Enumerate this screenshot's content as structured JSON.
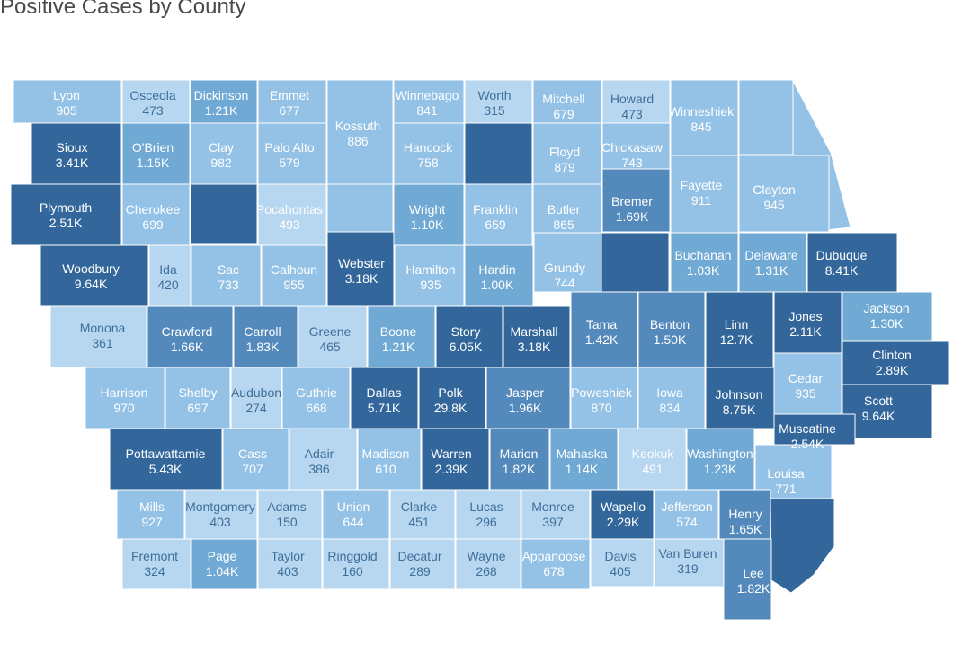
{
  "title": "Positive Cases by County",
  "palette": {
    "c1": "#b7d6ef",
    "c2": "#94c2e6",
    "c3": "#6fa9d4",
    "c4": "#5389bb",
    "c5": "#33679b"
  },
  "counties": [
    {
      "name": "Lyon",
      "value": "905",
      "cases": 905
    },
    {
      "name": "Osceola",
      "value": "473",
      "cases": 473
    },
    {
      "name": "Dickinson",
      "value": "1.21K",
      "cases": 1210
    },
    {
      "name": "Emmet",
      "value": "677",
      "cases": 677
    },
    {
      "name": "Kossuth",
      "value": "886",
      "cases": 886
    },
    {
      "name": "Winnebago",
      "value": "841",
      "cases": 841
    },
    {
      "name": "Worth",
      "value": "315",
      "cases": 315
    },
    {
      "name": "Mitchell",
      "value": "679",
      "cases": 679
    },
    {
      "name": "Howard",
      "value": "473",
      "cases": 473
    },
    {
      "name": "Winneshiek",
      "value": "845",
      "cases": 845
    },
    {
      "name": "Sioux",
      "value": "3.41K",
      "cases": 3410
    },
    {
      "name": "O'Brien",
      "value": "1.15K",
      "cases": 1150
    },
    {
      "name": "Clay",
      "value": "982",
      "cases": 982
    },
    {
      "name": "Palo Alto",
      "value": "579",
      "cases": 579
    },
    {
      "name": "Hancock",
      "value": "758",
      "cases": 758
    },
    {
      "name": "Floyd",
      "value": "879",
      "cases": 879
    },
    {
      "name": "Chickasaw",
      "value": "743",
      "cases": 743
    },
    {
      "name": "Fayette",
      "value": "911",
      "cases": 911
    },
    {
      "name": "Clayton",
      "value": "945",
      "cases": 945
    },
    {
      "name": "Plymouth",
      "value": "2.51K",
      "cases": 2510
    },
    {
      "name": "Cherokee",
      "value": "699",
      "cases": 699
    },
    {
      "name": "Pocahontas",
      "value": "493",
      "cases": 493
    },
    {
      "name": "Wright",
      "value": "1.10K",
      "cases": 1100
    },
    {
      "name": "Franklin",
      "value": "659",
      "cases": 659
    },
    {
      "name": "Butler",
      "value": "865",
      "cases": 865
    },
    {
      "name": "Bremer",
      "value": "1.69K",
      "cases": 1690
    },
    {
      "name": "Buchanan",
      "value": "1.03K",
      "cases": 1030
    },
    {
      "name": "Delaware",
      "value": "1.31K",
      "cases": 1310
    },
    {
      "name": "Dubuque",
      "value": "8.41K",
      "cases": 8410
    },
    {
      "name": "Woodbury",
      "value": "9.64K",
      "cases": 9640
    },
    {
      "name": "Ida",
      "value": "420",
      "cases": 420
    },
    {
      "name": "Sac",
      "value": "733",
      "cases": 733
    },
    {
      "name": "Calhoun",
      "value": "955",
      "cases": 955
    },
    {
      "name": "Webster",
      "value": "3.18K",
      "cases": 3180
    },
    {
      "name": "Hamilton",
      "value": "935",
      "cases": 935
    },
    {
      "name": "Hardin",
      "value": "1.00K",
      "cases": 1000
    },
    {
      "name": "Grundy",
      "value": "744",
      "cases": 744
    },
    {
      "name": "Monona",
      "value": "361",
      "cases": 361
    },
    {
      "name": "Crawford",
      "value": "1.66K",
      "cases": 1660
    },
    {
      "name": "Carroll",
      "value": "1.83K",
      "cases": 1830
    },
    {
      "name": "Greene",
      "value": "465",
      "cases": 465
    },
    {
      "name": "Boone",
      "value": "1.21K",
      "cases": 1210
    },
    {
      "name": "Story",
      "value": "6.05K",
      "cases": 6050
    },
    {
      "name": "Marshall",
      "value": "3.18K",
      "cases": 3180
    },
    {
      "name": "Tama",
      "value": "1.42K",
      "cases": 1420
    },
    {
      "name": "Benton",
      "value": "1.50K",
      "cases": 1500
    },
    {
      "name": "Linn",
      "value": "12.7K",
      "cases": 12700
    },
    {
      "name": "Jones",
      "value": "2.11K",
      "cases": 2110
    },
    {
      "name": "Jackson",
      "value": "1.30K",
      "cases": 1300
    },
    {
      "name": "Clinton",
      "value": "2.89K",
      "cases": 2890
    },
    {
      "name": "Harrison",
      "value": "970",
      "cases": 970
    },
    {
      "name": "Shelby",
      "value": "697",
      "cases": 697
    },
    {
      "name": "Audubon",
      "value": "274",
      "cases": 274
    },
    {
      "name": "Guthrie",
      "value": "668",
      "cases": 668
    },
    {
      "name": "Dallas",
      "value": "5.71K",
      "cases": 5710
    },
    {
      "name": "Polk",
      "value": "29.8K",
      "cases": 29800
    },
    {
      "name": "Jasper",
      "value": "1.96K",
      "cases": 1960
    },
    {
      "name": "Poweshiek",
      "value": "870",
      "cases": 870
    },
    {
      "name": "Iowa",
      "value": "834",
      "cases": 834
    },
    {
      "name": "Johnson",
      "value": "8.75K",
      "cases": 8750
    },
    {
      "name": "Cedar",
      "value": "935",
      "cases": 935
    },
    {
      "name": "Scott",
      "value": "9.64K",
      "cases": 9640
    },
    {
      "name": "Pottawattamie",
      "value": "5.43K",
      "cases": 5430
    },
    {
      "name": "Cass",
      "value": "707",
      "cases": 707
    },
    {
      "name": "Adair",
      "value": "386",
      "cases": 386
    },
    {
      "name": "Madison",
      "value": "610",
      "cases": 610
    },
    {
      "name": "Warren",
      "value": "2.39K",
      "cases": 2390
    },
    {
      "name": "Marion",
      "value": "1.82K",
      "cases": 1820
    },
    {
      "name": "Mahaska",
      "value": "1.14K",
      "cases": 1140
    },
    {
      "name": "Keokuk",
      "value": "491",
      "cases": 491
    },
    {
      "name": "Washington",
      "value": "1.23K",
      "cases": 1230
    },
    {
      "name": "Muscatine",
      "value": "2.54K",
      "cases": 2540
    },
    {
      "name": "Louisa",
      "value": "771",
      "cases": 771
    },
    {
      "name": "Mills",
      "value": "927",
      "cases": 927
    },
    {
      "name": "Montgomery",
      "value": "403",
      "cases": 403
    },
    {
      "name": "Adams",
      "value": "150",
      "cases": 150
    },
    {
      "name": "Union",
      "value": "644",
      "cases": 644
    },
    {
      "name": "Clarke",
      "value": "451",
      "cases": 451
    },
    {
      "name": "Lucas",
      "value": "296",
      "cases": 296
    },
    {
      "name": "Monroe",
      "value": "397",
      "cases": 397
    },
    {
      "name": "Wapello",
      "value": "2.29K",
      "cases": 2290
    },
    {
      "name": "Jefferson",
      "value": "574",
      "cases": 574
    },
    {
      "name": "Henry",
      "value": "1.65K",
      "cases": 1650
    },
    {
      "name": "Fremont",
      "value": "324",
      "cases": 324
    },
    {
      "name": "Page",
      "value": "1.04K",
      "cases": 1040
    },
    {
      "name": "Taylor",
      "value": "403",
      "cases": 403
    },
    {
      "name": "Ringgold",
      "value": "160",
      "cases": 160
    },
    {
      "name": "Decatur",
      "value": "289",
      "cases": 289
    },
    {
      "name": "Wayne",
      "value": "268",
      "cases": 268
    },
    {
      "name": "Appanoose",
      "value": "678",
      "cases": 678
    },
    {
      "name": "Davis",
      "value": "405",
      "cases": 405
    },
    {
      "name": "Van Buren",
      "value": "319",
      "cases": 319
    },
    {
      "name": "Lee",
      "value": "1.82K",
      "cases": 1820
    }
  ]
}
